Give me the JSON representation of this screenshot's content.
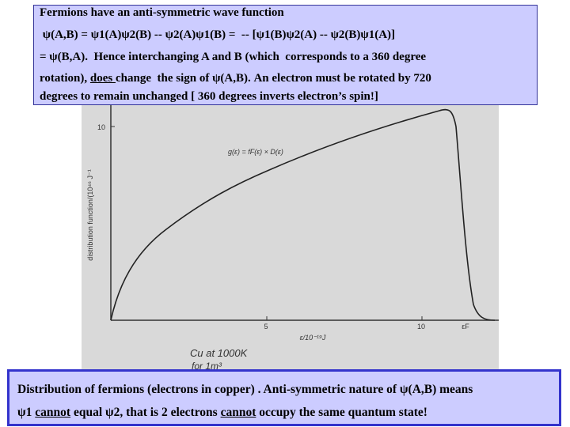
{
  "top_box": {
    "lines": [
      [
        "Fermions have an anti-symmetric wave function"
      ],
      [
        " ψ(A,B) = ψ1(A)ψ2(B) -- ψ2(A)ψ1(B) =  -- [ψ1(B)ψ2(A) -- ψ2(B)ψ1(A)]"
      ],
      [
        "= ψ(B,A).  Hence interchanging A and B (which  corresponds to a 360 degree"
      ],
      [
        "rotation), ",
        "does ",
        "change  the sign of ψ(A,B). An electron must be rotated by 720"
      ],
      [
        "degrees to remain unchanged [ 360 degrees inverts electron’s spin!]"
      ]
    ]
  },
  "figure": {
    "y_axis_label": "distribution function/(10⁴⁶ J⁻¹",
    "y_tick": "10",
    "x_ticks": [
      "5",
      "10",
      "εF"
    ],
    "x_axis_label": "ε/10⁻¹⁹J",
    "formula": "g(ε) = fF(ε) × D(ε)",
    "note": [
      "Cu at 1000K",
      "for 1m³"
    ]
  },
  "bottom_box": {
    "lines": [
      [
        "Distribution of fermions (electrons in copper) . Anti-symmetric nature of ψ(A,B) means"
      ],
      [
        "ψ1 ",
        "cannot",
        " equal ψ2, that is 2 electrons ",
        "cannot",
        " occupy the same quantum state!"
      ]
    ]
  }
}
